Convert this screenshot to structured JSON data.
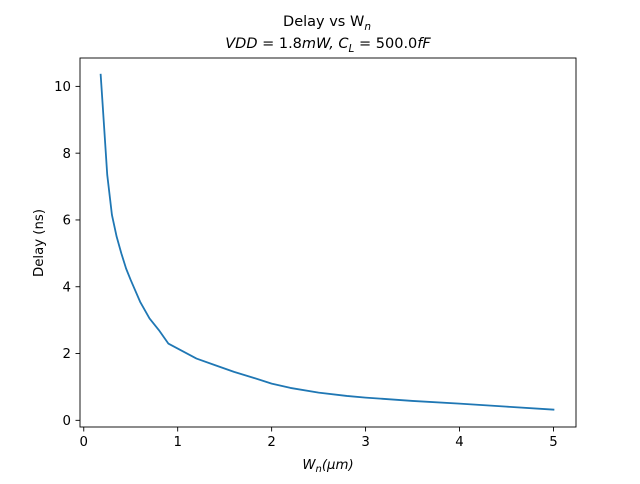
{
  "chart_data": {
    "type": "line",
    "title": "Delay vs W",
    "title_subscript": "n",
    "subtitle_parts": {
      "vdd_label": "VDD",
      "vdd_value": " = 1.8",
      "vdd_unit": "mW",
      "separator": ", ",
      "cl_label": "C",
      "cl_subscript": "L",
      "cl_value": " = 500.0",
      "cl_unit": "fF"
    },
    "xlabel": "W",
    "xlabel_subscript": "n",
    "xlabel_unit": "(μm)",
    "ylabel": "Delay (ns)",
    "xlim": [
      -0.04,
      5.24
    ],
    "ylim": [
      -0.2,
      10.85
    ],
    "x_ticks": [
      0,
      1,
      2,
      3,
      4,
      5
    ],
    "x_tick_labels": [
      "0",
      "1",
      "2",
      "3",
      "4",
      "5"
    ],
    "y_ticks": [
      0,
      2,
      4,
      6,
      8,
      10
    ],
    "y_tick_labels": [
      "0",
      "2",
      "4",
      "6",
      "8",
      "10"
    ],
    "grid": false,
    "series": [
      {
        "color": "#1f77b4",
        "x": [
          0.18,
          0.2,
          0.25,
          0.3,
          0.35,
          0.4,
          0.45,
          0.5,
          0.6,
          0.7,
          0.8,
          0.9,
          1.0,
          1.2,
          1.4,
          1.6,
          1.8,
          2.0,
          2.2,
          2.5,
          2.8,
          3.0,
          3.5,
          4.0,
          4.5,
          5.0
        ],
        "y": [
          10.35,
          9.5,
          7.35,
          6.15,
          5.5,
          5.0,
          4.55,
          4.2,
          3.55,
          3.05,
          2.7,
          2.3,
          2.15,
          1.85,
          1.65,
          1.45,
          1.28,
          1.1,
          0.97,
          0.83,
          0.73,
          0.68,
          0.58,
          0.5,
          0.41,
          0.32
        ]
      }
    ]
  }
}
